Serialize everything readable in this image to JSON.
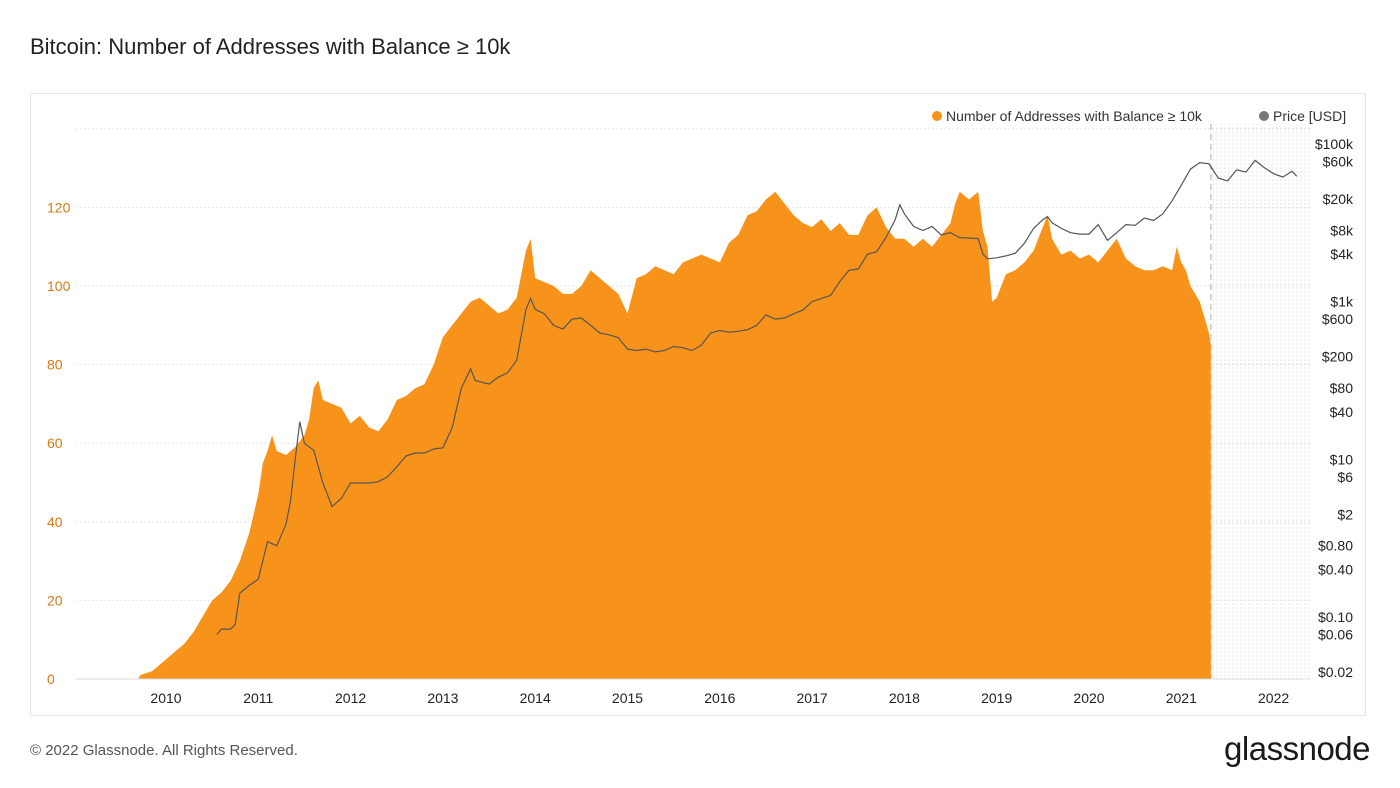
{
  "title": "Bitcoin: Number of Addresses with Balance ≥ 10k",
  "footer": "© 2022 Glassnode. All Rights Reserved.",
  "brand": "glassnode",
  "chart_data": {
    "type": "area",
    "x_label": "",
    "y_left_ticks": [
      "0",
      "20",
      "40",
      "60",
      "80",
      "100",
      "120"
    ],
    "y_right_ticks": [
      "$0.02",
      "$0.06",
      "$0.10",
      "$0.40",
      "$0.80",
      "$2",
      "$6",
      "$10",
      "$40",
      "$80",
      "$200",
      "$600",
      "$1k",
      "$4k",
      "$8k",
      "$20k",
      "$60k",
      "$100k"
    ],
    "x_ticks": [
      "2010",
      "2011",
      "2012",
      "2013",
      "2014",
      "2015",
      "2016",
      "2017",
      "2018",
      "2019",
      "2020",
      "2021",
      "2022"
    ],
    "y_left_range": [
      0,
      140
    ],
    "y_right_scale": "log",
    "legend_position": "top-right",
    "grid": true,
    "series": [
      {
        "name": "Number of Addresses with Balance ≥ 10k",
        "color": "#f7931a",
        "axis": "left",
        "points": [
          [
            2009.05,
            0
          ],
          [
            2009.7,
            0
          ],
          [
            2009.72,
            1
          ],
          [
            2009.85,
            2
          ],
          [
            2010.0,
            5
          ],
          [
            2010.1,
            7
          ],
          [
            2010.2,
            9
          ],
          [
            2010.3,
            12
          ],
          [
            2010.4,
            16
          ],
          [
            2010.5,
            20
          ],
          [
            2010.6,
            22
          ],
          [
            2010.7,
            25
          ],
          [
            2010.8,
            30
          ],
          [
            2010.9,
            37
          ],
          [
            2011.0,
            47
          ],
          [
            2011.05,
            55
          ],
          [
            2011.1,
            58
          ],
          [
            2011.15,
            62
          ],
          [
            2011.2,
            58
          ],
          [
            2011.3,
            57
          ],
          [
            2011.4,
            59
          ],
          [
            2011.5,
            62
          ],
          [
            2011.55,
            66
          ],
          [
            2011.6,
            74
          ],
          [
            2011.65,
            76
          ],
          [
            2011.7,
            71
          ],
          [
            2011.8,
            70
          ],
          [
            2011.9,
            69
          ],
          [
            2012.0,
            65
          ],
          [
            2012.1,
            67
          ],
          [
            2012.2,
            64
          ],
          [
            2012.3,
            63
          ],
          [
            2012.4,
            66
          ],
          [
            2012.5,
            71
          ],
          [
            2012.6,
            72
          ],
          [
            2012.7,
            74
          ],
          [
            2012.8,
            75
          ],
          [
            2012.9,
            80
          ],
          [
            2013.0,
            87
          ],
          [
            2013.1,
            90
          ],
          [
            2013.2,
            93
          ],
          [
            2013.3,
            96
          ],
          [
            2013.4,
            97
          ],
          [
            2013.5,
            95
          ],
          [
            2013.6,
            93
          ],
          [
            2013.7,
            94
          ],
          [
            2013.8,
            97
          ],
          [
            2013.9,
            109
          ],
          [
            2013.95,
            112
          ],
          [
            2014.0,
            102
          ],
          [
            2014.1,
            101
          ],
          [
            2014.2,
            100
          ],
          [
            2014.3,
            98
          ],
          [
            2014.4,
            98
          ],
          [
            2014.5,
            100
          ],
          [
            2014.6,
            104
          ],
          [
            2014.7,
            102
          ],
          [
            2014.8,
            100
          ],
          [
            2014.9,
            98
          ],
          [
            2015.0,
            93
          ],
          [
            2015.1,
            102
          ],
          [
            2015.2,
            103
          ],
          [
            2015.3,
            105
          ],
          [
            2015.4,
            104
          ],
          [
            2015.5,
            103
          ],
          [
            2015.6,
            106
          ],
          [
            2015.7,
            107
          ],
          [
            2015.8,
            108
          ],
          [
            2015.9,
            107
          ],
          [
            2016.0,
            106
          ],
          [
            2016.1,
            111
          ],
          [
            2016.2,
            113
          ],
          [
            2016.3,
            118
          ],
          [
            2016.4,
            119
          ],
          [
            2016.5,
            122
          ],
          [
            2016.6,
            124
          ],
          [
            2016.7,
            121
          ],
          [
            2016.8,
            118
          ],
          [
            2016.9,
            116
          ],
          [
            2017.0,
            115
          ],
          [
            2017.1,
            117
          ],
          [
            2017.2,
            114
          ],
          [
            2017.3,
            116
          ],
          [
            2017.4,
            113
          ],
          [
            2017.5,
            113
          ],
          [
            2017.6,
            118
          ],
          [
            2017.7,
            120
          ],
          [
            2017.8,
            115
          ],
          [
            2017.9,
            112
          ],
          [
            2018.0,
            112
          ],
          [
            2018.1,
            110
          ],
          [
            2018.2,
            112
          ],
          [
            2018.3,
            110
          ],
          [
            2018.4,
            113
          ],
          [
            2018.5,
            116
          ],
          [
            2018.55,
            121
          ],
          [
            2018.6,
            124
          ],
          [
            2018.7,
            122
          ],
          [
            2018.8,
            124
          ],
          [
            2018.85,
            114
          ],
          [
            2018.9,
            110
          ],
          [
            2018.95,
            96
          ],
          [
            2019.0,
            97
          ],
          [
            2019.1,
            103
          ],
          [
            2019.2,
            104
          ],
          [
            2019.3,
            106
          ],
          [
            2019.4,
            109
          ],
          [
            2019.5,
            115
          ],
          [
            2019.55,
            118
          ],
          [
            2019.6,
            112
          ],
          [
            2019.7,
            108
          ],
          [
            2019.8,
            109
          ],
          [
            2019.9,
            107
          ],
          [
            2020.0,
            108
          ],
          [
            2020.1,
            106
          ],
          [
            2020.2,
            109
          ],
          [
            2020.3,
            112
          ],
          [
            2020.4,
            107
          ],
          [
            2020.5,
            105
          ],
          [
            2020.6,
            104
          ],
          [
            2020.7,
            104
          ],
          [
            2020.8,
            105
          ],
          [
            2020.9,
            104
          ],
          [
            2020.95,
            110
          ],
          [
            2021.0,
            106
          ],
          [
            2021.05,
            104
          ],
          [
            2021.1,
            100
          ],
          [
            2021.15,
            98
          ],
          [
            2021.2,
            96
          ],
          [
            2021.25,
            92
          ],
          [
            2021.3,
            88
          ],
          [
            2021.32,
            85
          ]
        ]
      },
      {
        "name": "Price [USD]",
        "color": "#555555",
        "axis": "right",
        "points": [
          [
            2010.55,
            0.06
          ],
          [
            2010.6,
            0.07
          ],
          [
            2010.7,
            0.07
          ],
          [
            2010.75,
            0.08
          ],
          [
            2010.8,
            0.2
          ],
          [
            2010.9,
            0.25
          ],
          [
            2011.0,
            0.3
          ],
          [
            2011.1,
            0.9
          ],
          [
            2011.2,
            0.8
          ],
          [
            2011.3,
            1.5
          ],
          [
            2011.35,
            3
          ],
          [
            2011.4,
            10
          ],
          [
            2011.45,
            30
          ],
          [
            2011.5,
            16
          ],
          [
            2011.6,
            13
          ],
          [
            2011.7,
            5
          ],
          [
            2011.8,
            2.5
          ],
          [
            2011.9,
            3.2
          ],
          [
            2012.0,
            5
          ],
          [
            2012.1,
            5
          ],
          [
            2012.2,
            5
          ],
          [
            2012.3,
            5.2
          ],
          [
            2012.4,
            6
          ],
          [
            2012.5,
            8
          ],
          [
            2012.6,
            11
          ],
          [
            2012.7,
            12
          ],
          [
            2012.8,
            12
          ],
          [
            2012.9,
            13.5
          ],
          [
            2013.0,
            14
          ],
          [
            2013.1,
            25
          ],
          [
            2013.2,
            80
          ],
          [
            2013.3,
            140
          ],
          [
            2013.35,
            100
          ],
          [
            2013.5,
            90
          ],
          [
            2013.6,
            110
          ],
          [
            2013.7,
            125
          ],
          [
            2013.8,
            180
          ],
          [
            2013.9,
            800
          ],
          [
            2013.95,
            1100
          ],
          [
            2014.0,
            800
          ],
          [
            2014.1,
            700
          ],
          [
            2014.2,
            500
          ],
          [
            2014.3,
            450
          ],
          [
            2014.4,
            600
          ],
          [
            2014.5,
            620
          ],
          [
            2014.6,
            500
          ],
          [
            2014.7,
            400
          ],
          [
            2014.8,
            380
          ],
          [
            2014.9,
            350
          ],
          [
            2015.0,
            250
          ],
          [
            2015.1,
            240
          ],
          [
            2015.2,
            250
          ],
          [
            2015.3,
            230
          ],
          [
            2015.4,
            240
          ],
          [
            2015.5,
            270
          ],
          [
            2015.6,
            260
          ],
          [
            2015.7,
            240
          ],
          [
            2015.8,
            280
          ],
          [
            2015.9,
            400
          ],
          [
            2016.0,
            430
          ],
          [
            2016.1,
            410
          ],
          [
            2016.2,
            420
          ],
          [
            2016.3,
            440
          ],
          [
            2016.4,
            500
          ],
          [
            2016.5,
            680
          ],
          [
            2016.6,
            600
          ],
          [
            2016.7,
            620
          ],
          [
            2016.8,
            700
          ],
          [
            2016.9,
            780
          ],
          [
            2017.0,
            1000
          ],
          [
            2017.1,
            1100
          ],
          [
            2017.2,
            1200
          ],
          [
            2017.3,
            1800
          ],
          [
            2017.4,
            2500
          ],
          [
            2017.5,
            2600
          ],
          [
            2017.6,
            4000
          ],
          [
            2017.7,
            4300
          ],
          [
            2017.8,
            6500
          ],
          [
            2017.9,
            11000
          ],
          [
            2017.95,
            17000
          ],
          [
            2018.0,
            13000
          ],
          [
            2018.1,
            9000
          ],
          [
            2018.2,
            8000
          ],
          [
            2018.3,
            9000
          ],
          [
            2018.4,
            7000
          ],
          [
            2018.5,
            7500
          ],
          [
            2018.6,
            6500
          ],
          [
            2018.7,
            6400
          ],
          [
            2018.8,
            6300
          ],
          [
            2018.85,
            4000
          ],
          [
            2018.9,
            3500
          ],
          [
            2019.0,
            3600
          ],
          [
            2019.1,
            3800
          ],
          [
            2019.2,
            4100
          ],
          [
            2019.3,
            5500
          ],
          [
            2019.4,
            8500
          ],
          [
            2019.5,
            11000
          ],
          [
            2019.55,
            12000
          ],
          [
            2019.6,
            10000
          ],
          [
            2019.7,
            8500
          ],
          [
            2019.8,
            7500
          ],
          [
            2019.9,
            7200
          ],
          [
            2020.0,
            7200
          ],
          [
            2020.1,
            9500
          ],
          [
            2020.2,
            6000
          ],
          [
            2020.3,
            7500
          ],
          [
            2020.4,
            9500
          ],
          [
            2020.5,
            9300
          ],
          [
            2020.6,
            11500
          ],
          [
            2020.7,
            10700
          ],
          [
            2020.8,
            13000
          ],
          [
            2020.9,
            19000
          ],
          [
            2021.0,
            30000
          ],
          [
            2021.1,
            48000
          ],
          [
            2021.2,
            58000
          ],
          [
            2021.3,
            56000
          ],
          [
            2021.4,
            37000
          ],
          [
            2021.5,
            34000
          ],
          [
            2021.6,
            47000
          ],
          [
            2021.7,
            44000
          ],
          [
            2021.8,
            62000
          ],
          [
            2021.9,
            50000
          ],
          [
            2022.0,
            42000
          ],
          [
            2022.1,
            38000
          ],
          [
            2022.2,
            45000
          ],
          [
            2022.25,
            39000
          ]
        ]
      }
    ],
    "highlight_region_start": 2021.32
  }
}
